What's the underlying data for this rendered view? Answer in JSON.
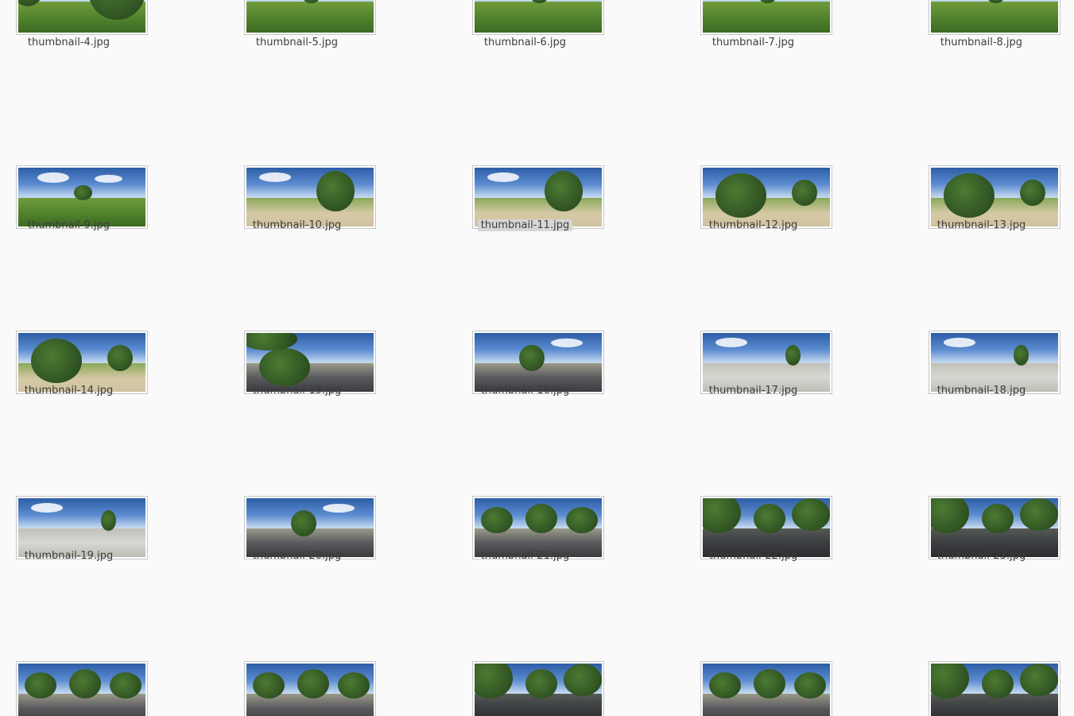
{
  "files": [
    {
      "name": "thumbnail-4.jpg",
      "scene": "park-trees",
      "selected": false
    },
    {
      "name": "thumbnail-5.jpg",
      "scene": "park-open",
      "selected": false
    },
    {
      "name": "thumbnail-6.jpg",
      "scene": "park-open",
      "selected": false
    },
    {
      "name": "thumbnail-7.jpg",
      "scene": "park-open",
      "selected": false
    },
    {
      "name": "thumbnail-8.jpg",
      "scene": "park-open",
      "selected": false
    },
    {
      "name": "thumbnail-9.jpg",
      "scene": "park-open",
      "selected": false
    },
    {
      "name": "thumbnail-10.jpg",
      "scene": "park-path",
      "selected": false
    },
    {
      "name": "thumbnail-11.jpg",
      "scene": "park-path",
      "selected": true
    },
    {
      "name": "thumbnail-12.jpg",
      "scene": "bush-path",
      "selected": false
    },
    {
      "name": "thumbnail-13.jpg",
      "scene": "bush-path",
      "selected": false
    },
    {
      "name": "thumbnail-14.jpg",
      "scene": "bush-path",
      "selected": false
    },
    {
      "name": "thumbnail-15.jpg",
      "scene": "bush-road",
      "selected": false
    },
    {
      "name": "thumbnail-16.jpg",
      "scene": "street-road",
      "selected": false
    },
    {
      "name": "thumbnail-17.jpg",
      "scene": "construction",
      "selected": false
    },
    {
      "name": "thumbnail-18.jpg",
      "scene": "construction",
      "selected": false
    },
    {
      "name": "thumbnail-19.jpg",
      "scene": "construction",
      "selected": false
    },
    {
      "name": "thumbnail-20.jpg",
      "scene": "street-road",
      "selected": false
    },
    {
      "name": "thumbnail-21.jpg",
      "scene": "tree-street",
      "selected": false
    },
    {
      "name": "thumbnail-22.jpg",
      "scene": "tree-street-dark",
      "selected": false
    },
    {
      "name": "thumbnail-23.jpg",
      "scene": "tree-street-dark",
      "selected": false
    },
    {
      "name": "",
      "scene": "tree-street",
      "selected": false
    },
    {
      "name": "",
      "scene": "tree-street",
      "selected": false
    },
    {
      "name": "",
      "scene": "tree-street-dark",
      "selected": false
    },
    {
      "name": "",
      "scene": "tree-street",
      "selected": false
    },
    {
      "name": "",
      "scene": "tree-street-dark",
      "selected": false
    }
  ],
  "colors": {
    "background": "#fafafa",
    "selected_label_bg": "#d6d6d6",
    "label_text": "#3c3c3c"
  }
}
